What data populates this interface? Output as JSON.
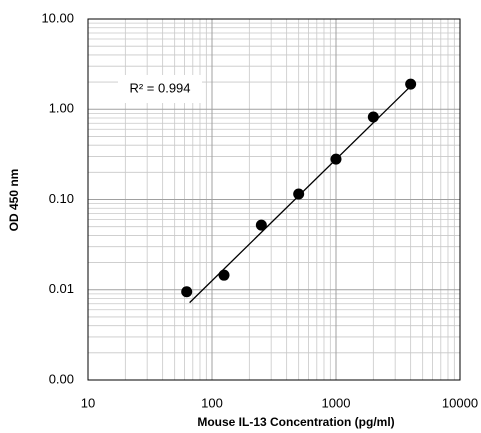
{
  "chart_data": {
    "type": "scatter",
    "xlabel": "Mouse IL-13 Concentration (pg/ml)",
    "ylabel": "OD 450 nm",
    "x": [
      62.5,
      125,
      250,
      500,
      1000,
      2000,
      4000
    ],
    "values": [
      0.0095,
      0.0145,
      0.052,
      0.115,
      0.28,
      0.82,
      1.9
    ],
    "color": "#000000",
    "xlim": [
      10,
      10000
    ],
    "xticks": [
      10,
      100,
      1000,
      10000
    ],
    "ylim": [
      0.001,
      10
    ],
    "yticks": [
      {
        "value": 0.001,
        "label": "0.00"
      },
      {
        "value": 0.01,
        "label": "0.01"
      },
      {
        "value": 0.1,
        "label": "0.10"
      },
      {
        "value": 1,
        "label": "1.00"
      },
      {
        "value": 10,
        "label": "10.00"
      }
    ],
    "xscale": "log",
    "yscale": "log",
    "grid": true,
    "trendline": {
      "x": [
        66,
        4000
      ],
      "y": [
        0.0072,
        1.8
      ]
    },
    "annotation": "R² = 0.994"
  }
}
